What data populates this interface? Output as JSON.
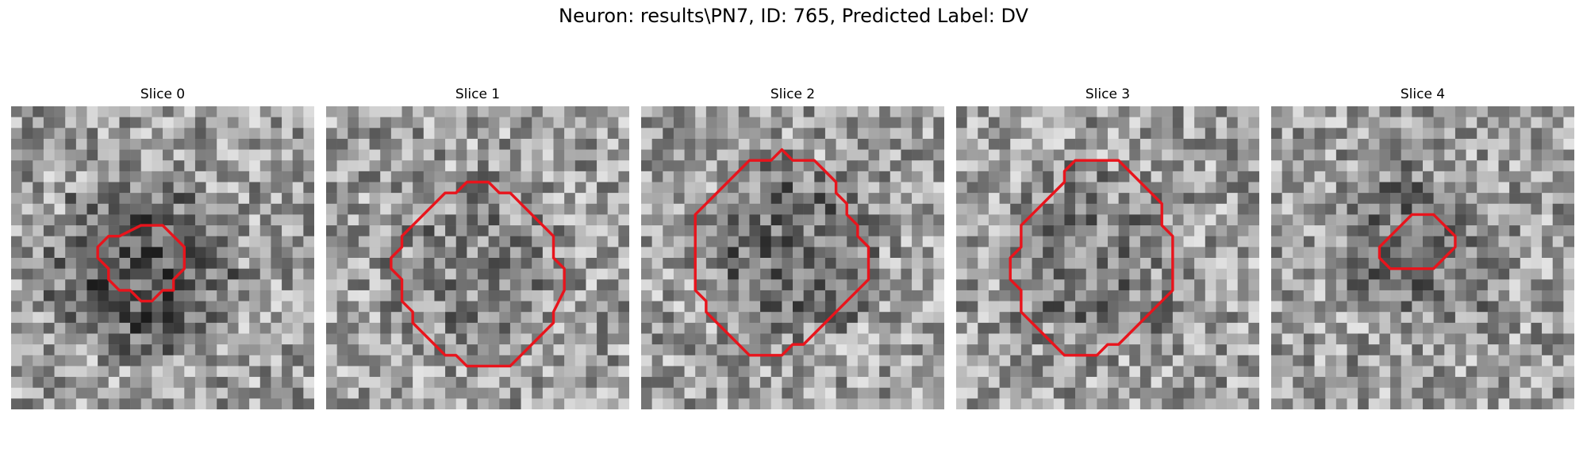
{
  "figure": {
    "title": "Neuron: results\\PN7, ID: 765, Predicted Label: DV",
    "contour_color": "#e8141c",
    "slices": [
      {
        "title": "Slice 0",
        "seed": 11,
        "dark_center": 0.55,
        "outline": [
          [
            12,
            11
          ],
          [
            14,
            11
          ],
          [
            15,
            12
          ],
          [
            16,
            13
          ],
          [
            16,
            15
          ],
          [
            15,
            16
          ],
          [
            15,
            17
          ],
          [
            14,
            17
          ],
          [
            13,
            18
          ],
          [
            12,
            18
          ],
          [
            11,
            17
          ],
          [
            10,
            17
          ],
          [
            9,
            16
          ],
          [
            9,
            15
          ],
          [
            8,
            14
          ],
          [
            8,
            13
          ],
          [
            9,
            12
          ],
          [
            10,
            12
          ]
        ]
      },
      {
        "title": "Slice 1",
        "seed": 27,
        "dark_center": 0.2,
        "outline": [
          [
            13,
            7
          ],
          [
            15,
            7
          ],
          [
            16,
            8
          ],
          [
            17,
            8
          ],
          [
            18,
            9
          ],
          [
            19,
            10
          ],
          [
            20,
            11
          ],
          [
            21,
            12
          ],
          [
            21,
            14
          ],
          [
            22,
            15
          ],
          [
            22,
            17
          ],
          [
            21,
            19
          ],
          [
            21,
            20
          ],
          [
            20,
            21
          ],
          [
            19,
            22
          ],
          [
            18,
            23
          ],
          [
            17,
            24
          ],
          [
            13,
            24
          ],
          [
            12,
            23
          ],
          [
            11,
            23
          ],
          [
            10,
            22
          ],
          [
            9,
            21
          ],
          [
            8,
            20
          ],
          [
            8,
            19
          ],
          [
            7,
            18
          ],
          [
            7,
            16
          ],
          [
            6,
            15
          ],
          [
            6,
            14
          ],
          [
            7,
            13
          ],
          [
            7,
            12
          ],
          [
            8,
            11
          ],
          [
            9,
            10
          ],
          [
            10,
            9
          ],
          [
            11,
            8
          ],
          [
            12,
            8
          ]
        ]
      },
      {
        "title": "Slice 2",
        "seed": 43,
        "dark_center": 0.35,
        "outline": [
          [
            13,
            4
          ],
          [
            14,
            5
          ],
          [
            16,
            5
          ],
          [
            17,
            6
          ],
          [
            18,
            7
          ],
          [
            18,
            8
          ],
          [
            19,
            9
          ],
          [
            19,
            10
          ],
          [
            20,
            11
          ],
          [
            20,
            12
          ],
          [
            21,
            13
          ],
          [
            21,
            16
          ],
          [
            20,
            17
          ],
          [
            19,
            18
          ],
          [
            18,
            19
          ],
          [
            17,
            20
          ],
          [
            16,
            21
          ],
          [
            15,
            22
          ],
          [
            14,
            22
          ],
          [
            13,
            23
          ],
          [
            10,
            23
          ],
          [
            9,
            22
          ],
          [
            8,
            21
          ],
          [
            7,
            20
          ],
          [
            6,
            19
          ],
          [
            6,
            18
          ],
          [
            5,
            17
          ],
          [
            5,
            10
          ],
          [
            6,
            9
          ],
          [
            7,
            8
          ],
          [
            8,
            7
          ],
          [
            9,
            6
          ],
          [
            10,
            5
          ],
          [
            12,
            5
          ]
        ]
      },
      {
        "title": "Slice 3",
        "seed": 59,
        "dark_center": 0.25,
        "outline": [
          [
            11,
            5
          ],
          [
            15,
            5
          ],
          [
            16,
            6
          ],
          [
            17,
            7
          ],
          [
            18,
            8
          ],
          [
            19,
            9
          ],
          [
            19,
            11
          ],
          [
            20,
            12
          ],
          [
            20,
            17
          ],
          [
            19,
            18
          ],
          [
            18,
            19
          ],
          [
            17,
            20
          ],
          [
            16,
            21
          ],
          [
            15,
            22
          ],
          [
            14,
            22
          ],
          [
            13,
            23
          ],
          [
            10,
            23
          ],
          [
            9,
            22
          ],
          [
            8,
            21
          ],
          [
            7,
            20
          ],
          [
            6,
            19
          ],
          [
            6,
            17
          ],
          [
            5,
            16
          ],
          [
            5,
            14
          ],
          [
            6,
            13
          ],
          [
            6,
            11
          ],
          [
            7,
            10
          ],
          [
            8,
            9
          ],
          [
            9,
            8
          ],
          [
            10,
            7
          ],
          [
            10,
            6
          ]
        ]
      },
      {
        "title": "Slice 4",
        "seed": 71,
        "dark_center": 0.3,
        "outline": [
          [
            13,
            10
          ],
          [
            15,
            10
          ],
          [
            16,
            11
          ],
          [
            17,
            12
          ],
          [
            17,
            13
          ],
          [
            16,
            14
          ],
          [
            15,
            15
          ],
          [
            11,
            15
          ],
          [
            10,
            14
          ],
          [
            10,
            13
          ],
          [
            11,
            12
          ],
          [
            12,
            11
          ]
        ]
      }
    ]
  }
}
